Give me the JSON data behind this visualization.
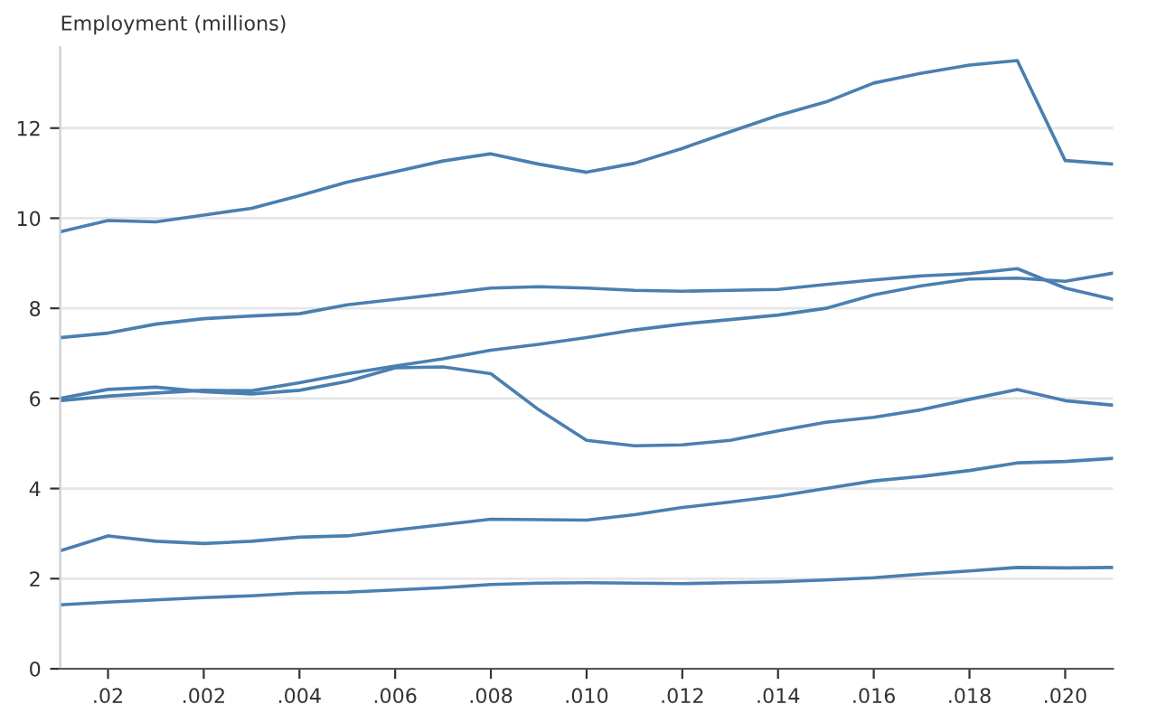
{
  "chart_data": {
    "type": "line",
    "ylabel": "Employment (millions)",
    "categories": [
      null,
      ".02",
      null,
      ".002",
      null,
      ".004",
      null,
      ".006",
      null,
      ".008",
      null,
      ".010",
      null,
      ".012",
      null,
      ".014",
      null,
      ".016",
      null,
      ".018",
      null,
      ".020",
      null
    ],
    "series": [
      {
        "color": "#4a7fb0",
        "values": [
          9.7,
          9.95,
          9.92,
          10.07,
          10.22,
          10.5,
          10.8,
          11.03,
          11.27,
          11.43,
          11.2,
          11.02,
          11.22,
          11.55,
          11.92,
          12.28,
          12.58,
          13.0,
          13.22,
          13.4,
          13.5,
          11.28,
          11.2
        ]
      },
      {
        "color": "#4a7fb0",
        "values": [
          7.35,
          7.45,
          7.65,
          7.77,
          7.83,
          7.88,
          8.08,
          8.2,
          8.32,
          8.45,
          8.48,
          8.45,
          8.4,
          8.38,
          8.4,
          8.42,
          8.53,
          8.63,
          8.72,
          8.77,
          8.88,
          8.45,
          8.2
        ]
      },
      {
        "color": "#4a7fb0",
        "values": [
          5.95,
          6.05,
          6.12,
          6.18,
          6.17,
          6.35,
          6.55,
          6.72,
          6.88,
          7.07,
          7.2,
          7.35,
          7.52,
          7.65,
          7.75,
          7.85,
          8.0,
          8.3,
          8.5,
          8.65,
          8.67,
          8.6,
          8.78
        ]
      },
      {
        "color": "#4a7fb0",
        "values": [
          6.0,
          6.2,
          6.25,
          6.15,
          6.1,
          6.18,
          6.38,
          6.68,
          6.7,
          6.55,
          5.75,
          5.07,
          4.95,
          4.97,
          5.07,
          5.28,
          5.47,
          5.58,
          5.75,
          5.98,
          6.2,
          5.95,
          5.85
        ]
      },
      {
        "color": "#4a7fb0",
        "values": [
          2.62,
          2.95,
          2.83,
          2.78,
          2.83,
          2.92,
          2.95,
          3.08,
          3.2,
          3.32,
          3.31,
          3.3,
          3.42,
          3.58,
          3.7,
          3.83,
          4.0,
          4.17,
          4.27,
          4.4,
          4.57,
          4.6,
          4.67
        ]
      },
      {
        "color": "#4a7fb0",
        "values": [
          1.42,
          1.48,
          1.53,
          1.58,
          1.62,
          1.68,
          1.7,
          1.75,
          1.8,
          1.87,
          1.9,
          1.91,
          1.9,
          1.89,
          1.91,
          1.93,
          1.97,
          2.02,
          2.1,
          2.17,
          2.25,
          2.24,
          2.25
        ]
      }
    ],
    "ylim": [
      0,
      13.8
    ],
    "yticks": [
      0,
      2,
      4,
      6,
      8,
      10,
      12
    ],
    "grid": "y"
  }
}
